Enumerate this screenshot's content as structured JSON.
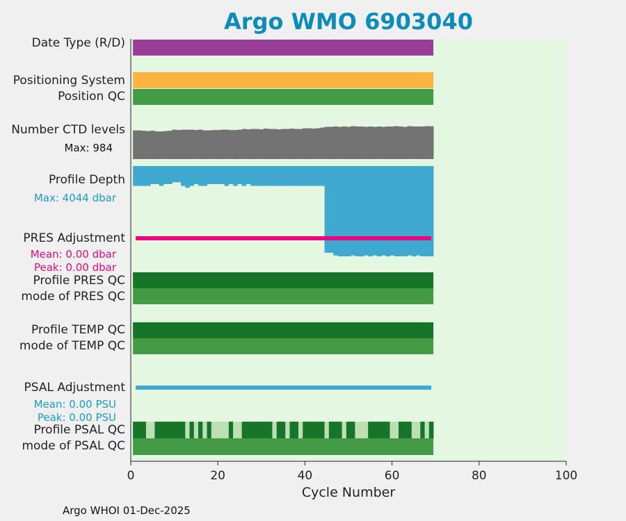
{
  "title": "Argo WMO 6903040",
  "footer": "Argo WHOI 01-Dec-2025",
  "colors": {
    "plot_bg": "#e3f7e1",
    "date_type": "#9a3d98",
    "positioning": "#fbb440",
    "qc_green": "#459a45",
    "qc_dark": "#167527",
    "qc_light": "#bcdfb6",
    "ctd_levels": "#737373",
    "profile_depth": "#40a9d0",
    "pres_adj": "#e6097f",
    "psal_adj": "#3faad1",
    "title": "#0b8cba"
  },
  "rows": {
    "date_type": "Date Type (R/D)",
    "positioning": "Positioning System",
    "position_qc": "Position QC",
    "ctd_levels": "Number CTD levels",
    "ctd_max": "Max: 984",
    "profile_depth": "Profile Depth",
    "depth_max": "Max: 4044 dbar",
    "pres_adj": "PRES Adjustment",
    "pres_mean": "Mean: 0.00 dbar",
    "pres_peak": "Peak: 0.00 dbar",
    "profile_pres_qc": "Profile PRES QC",
    "mode_pres_qc": "mode of PRES QC",
    "profile_temp_qc": "Profile TEMP QC",
    "mode_temp_qc": "mode of TEMP QC",
    "psal_adj": "PSAL Adjustment",
    "psal_mean": "Mean: 0.00 PSU",
    "psal_peak": "Peak: 0.00 PSU",
    "profile_psal_qc": "Profile PSAL QC",
    "mode_psal_qc": "mode of PSAL QC"
  },
  "chart_data": {
    "type": "bar",
    "xlabel": "Cycle Number",
    "xlim": [
      0,
      100
    ],
    "xticks": [
      "0",
      "20",
      "40",
      "60",
      "80",
      "100"
    ],
    "cycles": [
      1,
      69
    ],
    "ctd_levels_max": 984,
    "ctd_levels_rel": [
      0.81,
      0.81,
      0.8,
      0.79,
      0.8,
      0.78,
      0.78,
      0.79,
      0.8,
      0.83,
      0.82,
      0.83,
      0.83,
      0.83,
      0.82,
      0.83,
      0.81,
      0.81,
      0.82,
      0.82,
      0.83,
      0.83,
      0.82,
      0.82,
      0.83,
      0.85,
      0.84,
      0.85,
      0.85,
      0.84,
      0.86,
      0.85,
      0.85,
      0.84,
      0.85,
      0.85,
      0.86,
      0.85,
      0.85,
      0.87,
      0.87,
      0.86,
      0.87,
      0.89,
      0.91,
      0.91,
      0.92,
      0.91,
      0.92,
      0.91,
      0.93,
      0.92,
      0.92,
      0.91,
      0.92,
      0.91,
      0.92,
      0.91,
      0.92,
      0.92,
      0.93,
      0.92,
      0.91,
      0.93,
      0.92,
      0.92,
      0.92,
      0.93,
      0.93
    ],
    "profile_depth_max": 4044,
    "profile_depth_rel": [
      0.22,
      0.22,
      0.22,
      0.22,
      0.2,
      0.2,
      0.22,
      0.2,
      0.2,
      0.18,
      0.18,
      0.22,
      0.24,
      0.22,
      0.2,
      0.22,
      0.22,
      0.2,
      0.2,
      0.2,
      0.2,
      0.22,
      0.2,
      0.22,
      0.2,
      0.22,
      0.2,
      0.22,
      0.22,
      0.22,
      0.22,
      0.22,
      0.22,
      0.22,
      0.22,
      0.22,
      0.22,
      0.22,
      0.22,
      0.22,
      0.22,
      0.22,
      0.22,
      0.22,
      0.96,
      0.96,
      0.99,
      1.0,
      1.0,
      1.0,
      0.99,
      1.0,
      1.0,
      0.99,
      1.0,
      0.99,
      1.0,
      0.99,
      1.0,
      0.99,
      1.0,
      1.0,
      1.0,
      0.99,
      1.0,
      0.99,
      1.0,
      1.0,
      1.0
    ],
    "pres_adjustment_mean": 0.0,
    "pres_adjustment_peak": 0.0,
    "psal_adjustment_mean": 0.0,
    "psal_adjustment_peak": 0.0,
    "profile_psal_qc": [
      "A",
      "A",
      "A",
      "B",
      "B",
      "A",
      "A",
      "A",
      "A",
      "A",
      "A",
      "A",
      "B",
      "A",
      "B",
      "A",
      "B",
      "A",
      "B",
      "B",
      "B",
      "B",
      "A",
      "B",
      "B",
      "A",
      "A",
      "A",
      "A",
      "A",
      "A",
      "A",
      "B",
      "A",
      "A",
      "B",
      "A",
      "A",
      "B",
      "A",
      "A",
      "A",
      "A",
      "A",
      "B",
      "A",
      "A",
      "A",
      "B",
      "A",
      "A",
      "B",
      "B",
      "B",
      "A",
      "A",
      "A",
      "A",
      "A",
      "B",
      "B",
      "A",
      "A",
      "A",
      "B",
      "B",
      "A",
      "B",
      "A"
    ],
    "psal_qc_key": {
      "A": "qc_dark",
      "B": "qc_light"
    }
  }
}
